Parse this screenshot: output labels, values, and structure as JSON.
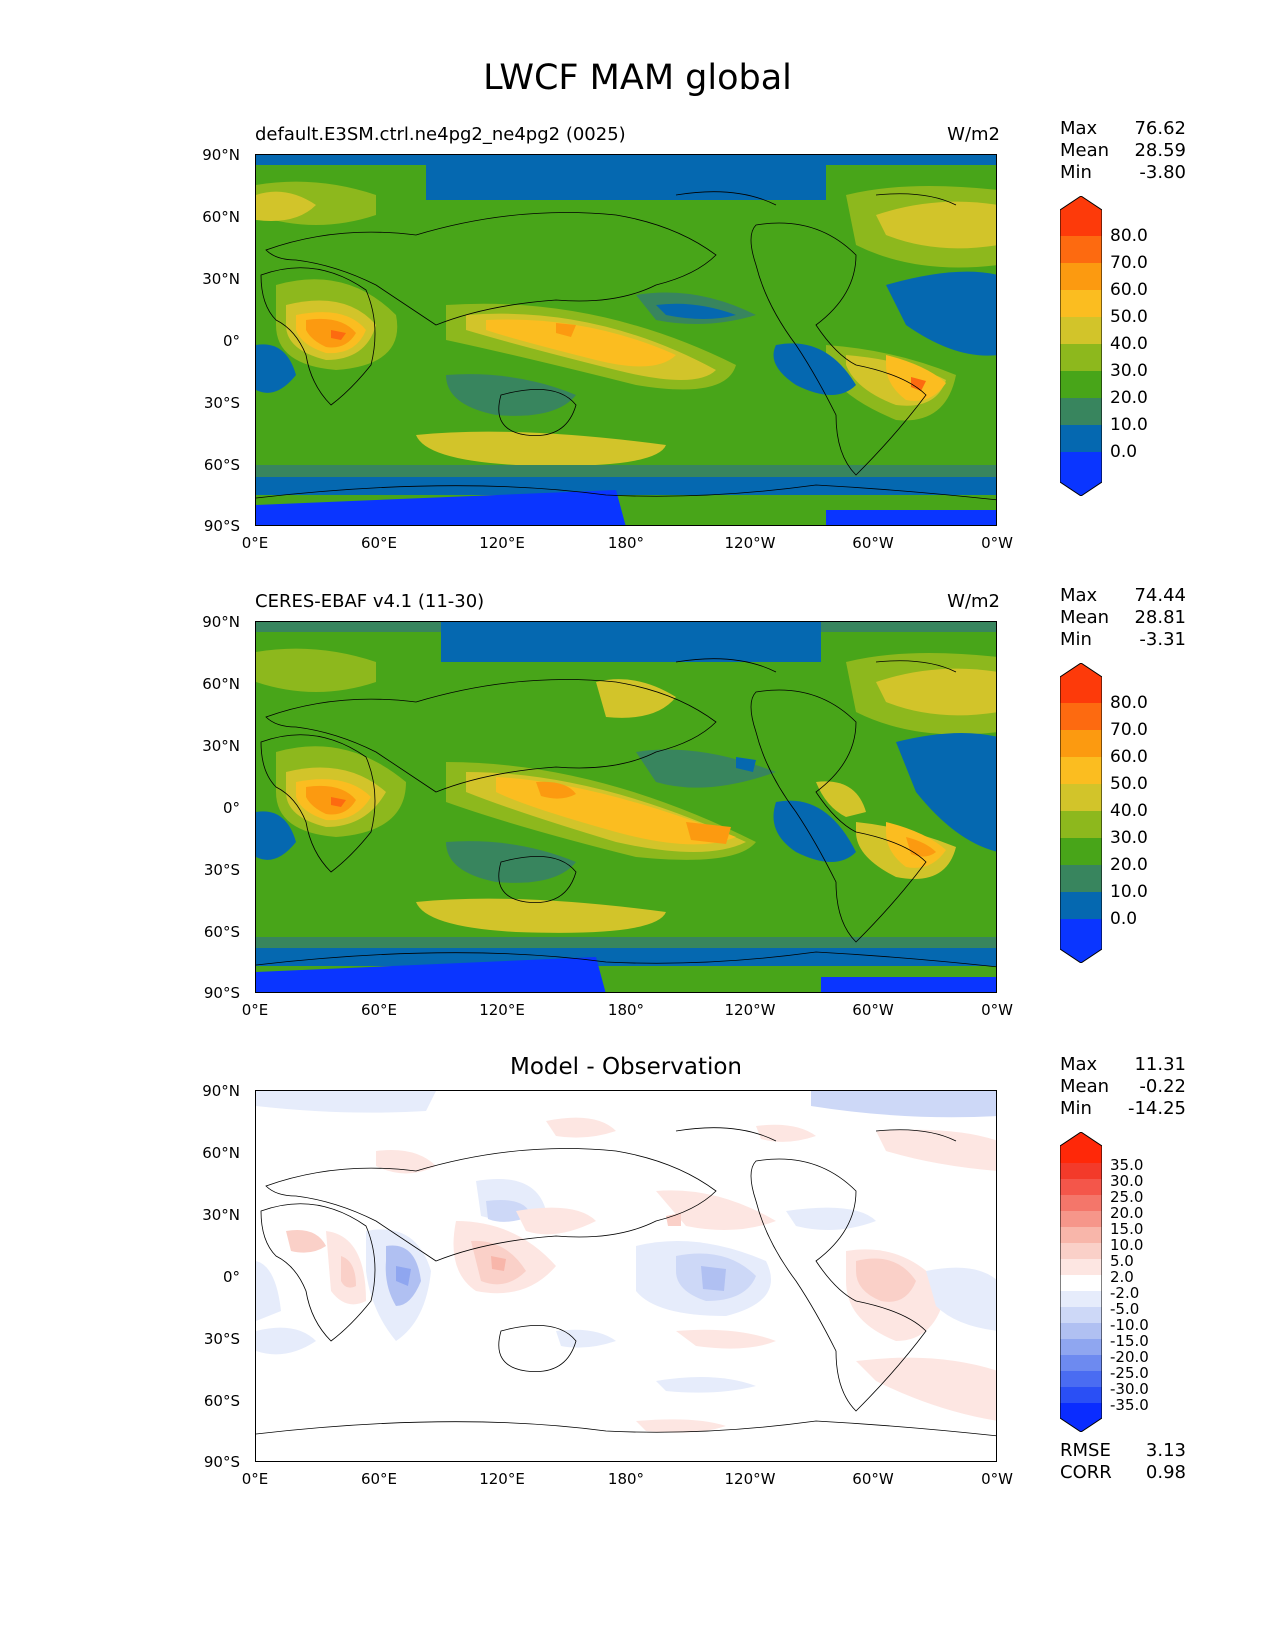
{
  "figure": {
    "title": "LWCF MAM global"
  },
  "axes": {
    "lat_ticks": [
      "90°N",
      "60°N",
      "30°N",
      "0°",
      "30°S",
      "60°S",
      "90°S"
    ],
    "lon_ticks": [
      "0°E",
      "60°E",
      "120°E",
      "180°",
      "120°W",
      "60°W",
      "0°W"
    ]
  },
  "panels": [
    {
      "name": "test",
      "title_left": "default.E3SM.ctrl.ne4pg2_ne4pg2 (0025)",
      "title_right": "W/m2",
      "stats": [
        {
          "label": "Max",
          "value": "76.62"
        },
        {
          "label": "Mean",
          "value": "28.59"
        },
        {
          "label": "Min",
          "value": "-3.80"
        }
      ],
      "colorbar_labels": [
        "80.0",
        "70.0",
        "60.0",
        "50.0",
        "40.0",
        "30.0",
        "20.0",
        "10.0",
        "0.0"
      ]
    },
    {
      "name": "reference",
      "title_left": "CERES-EBAF v4.1 (11-30)",
      "title_right": "W/m2",
      "stats": [
        {
          "label": "Max",
          "value": "74.44"
        },
        {
          "label": "Mean",
          "value": "28.81"
        },
        {
          "label": "Min",
          "value": "-3.31"
        }
      ],
      "colorbar_labels": [
        "80.0",
        "70.0",
        "60.0",
        "50.0",
        "40.0",
        "30.0",
        "20.0",
        "10.0",
        "0.0"
      ]
    },
    {
      "name": "difference",
      "title_center": "Model - Observation",
      "stats": [
        {
          "label": "Max",
          "value": "11.31"
        },
        {
          "label": "Mean",
          "value": "-0.22"
        },
        {
          "label": "Min",
          "value": "-14.25"
        }
      ],
      "colorbar_labels": [
        "35.0",
        "30.0",
        "25.0",
        "20.0",
        "15.0",
        "10.0",
        "5.0",
        "2.0",
        "-2.0",
        "-5.0",
        "-10.0",
        "-15.0",
        "-20.0",
        "-25.0",
        "-30.0",
        "-35.0"
      ],
      "extra_stats": [
        {
          "label": "RMSE",
          "value": "3.13"
        },
        {
          "label": "CORR",
          "value": "0.98"
        }
      ]
    }
  ],
  "colormaps": {
    "absolute": [
      "#0a35ff",
      "#0568b0",
      "#38855e",
      "#48a519",
      "#8db81d",
      "#d2c42a",
      "#fbbd20",
      "#fc9a10",
      "#fd6a10",
      "#fd3a0a"
    ],
    "difference": [
      "#0a2cff",
      "#2a4ff5",
      "#4a6cf2",
      "#6d8af0",
      "#8fa6f0",
      "#b0c0f2",
      "#cdd8f7",
      "#e6ecfb",
      "#ffffff",
      "#fde6e2",
      "#fad0c8",
      "#f8b6aa",
      "#f6968a",
      "#f4766a",
      "#f4564a",
      "#f33a2a",
      "#ff2808"
    ]
  }
}
